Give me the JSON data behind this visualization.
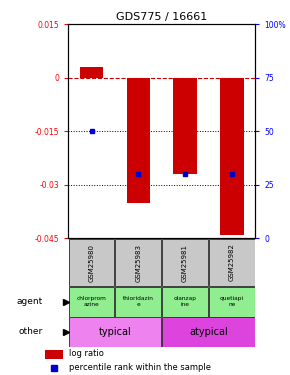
{
  "title": "GDS775 / 16661",
  "samples": [
    "GSM25980",
    "GSM25983",
    "GSM25981",
    "GSM25982"
  ],
  "log_ratios": [
    0.003,
    -0.035,
    -0.027,
    -0.044
  ],
  "percentiles": [
    50,
    30,
    30,
    30
  ],
  "ylim_left": [
    -0.045,
    0.015
  ],
  "ylim_right": [
    0,
    100
  ],
  "yticks_left": [
    0.015,
    0,
    -0.015,
    -0.03,
    -0.045
  ],
  "ytick_labels_left": [
    "0.015",
    "0",
    "-0.015",
    "-0.03",
    "-0.045"
  ],
  "yticks_right": [
    100,
    75,
    50,
    25,
    0
  ],
  "ytick_labels_right": [
    "100%",
    "75",
    "50",
    "25",
    "0"
  ],
  "bar_color": "#cc0000",
  "dot_color": "#0000cc",
  "zero_line_color": "#cc0000",
  "grid_color": "#000000",
  "agent_labels": [
    "chlorprom\nazine",
    "thioridazin\ne",
    "olanzap\nine",
    "quetiapi\nne"
  ],
  "agent_bg": "#90ee90",
  "other_color_typical": "#ee82ee",
  "other_color_atypical": "#dd44dd",
  "legend_log": "log ratio",
  "legend_pct": "percentile rank within the sample",
  "bar_width": 0.5,
  "sample_bg": "#c8c8c8"
}
